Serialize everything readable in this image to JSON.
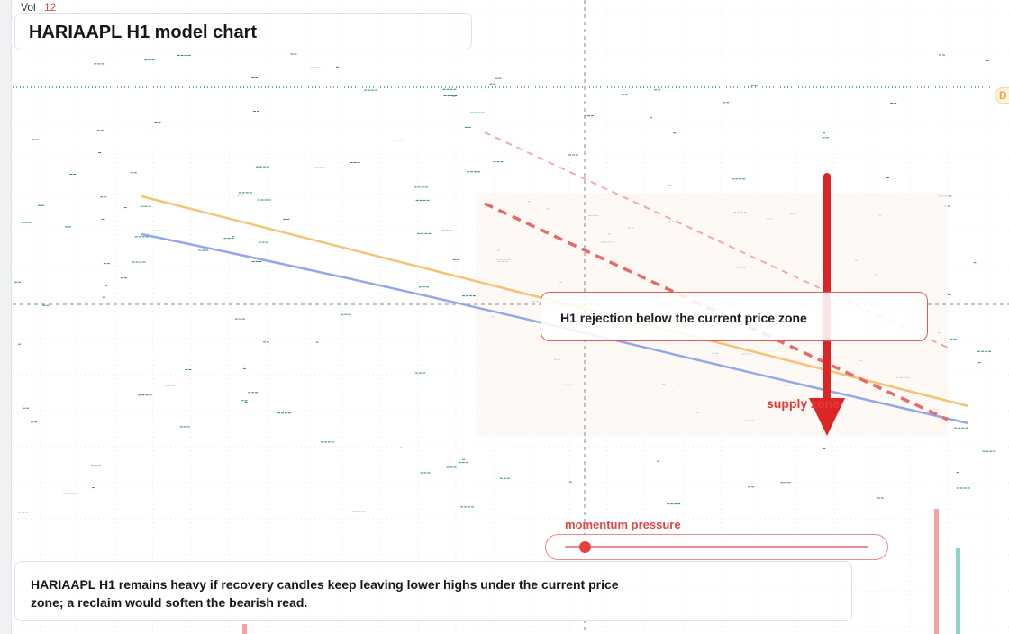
{
  "header": {
    "vol_label": "Vol",
    "vol_value": "12"
  },
  "title": "HARIAAPL H1 model chart",
  "right_badge": "D",
  "annotations": {
    "rejection": "H1 rejection below the current price zone",
    "supply": "supply zone"
  },
  "momentum": {
    "label": "momentum pressure",
    "level": 0.05
  },
  "summary": "HARIAAPL H1 remains heavy if recovery candles keep leaving lower highs under the current price zone; a reclaim would soften the bearish read.",
  "colors": {
    "orange_line": "#f6c274",
    "blue_line": "#92a8ee",
    "dashed_red": "#e56b6b",
    "arrow_red": "#dc2626",
    "tick_green": "#2f8a6e",
    "vol_bar_red": "#f2a3a3",
    "vol_bar_teal": "#8fd4c8"
  },
  "icons": {
    "arrow": "down-arrow-icon"
  }
}
